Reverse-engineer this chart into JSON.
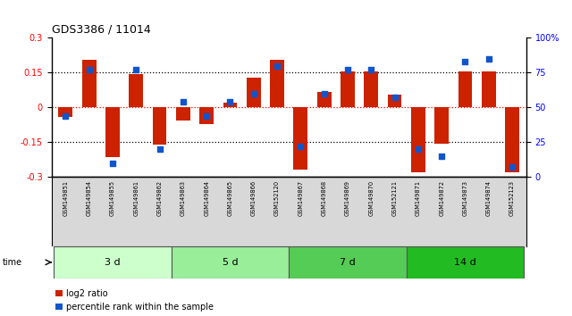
{
  "title": "GDS3386 / 11014",
  "samples": [
    "GSM149851",
    "GSM149854",
    "GSM149855",
    "GSM149861",
    "GSM149862",
    "GSM149863",
    "GSM149864",
    "GSM149865",
    "GSM149866",
    "GSM152120",
    "GSM149867",
    "GSM149868",
    "GSM149869",
    "GSM149870",
    "GSM152121",
    "GSM149871",
    "GSM149872",
    "GSM149873",
    "GSM149874",
    "GSM152123"
  ],
  "log2_ratio": [
    -0.04,
    0.205,
    -0.215,
    0.145,
    -0.16,
    -0.055,
    -0.07,
    0.02,
    0.13,
    0.205,
    -0.27,
    0.065,
    0.155,
    0.155,
    0.055,
    -0.28,
    -0.155,
    0.155,
    0.155,
    -0.28
  ],
  "percentile_rank": [
    44,
    77,
    10,
    77,
    20,
    54,
    44,
    54,
    60,
    80,
    22,
    60,
    77,
    77,
    57,
    20,
    15,
    83,
    85,
    7
  ],
  "groups": [
    {
      "label": "3 d",
      "start": 0,
      "end": 5,
      "color": "#ccffcc"
    },
    {
      "label": "5 d",
      "start": 5,
      "end": 10,
      "color": "#99ee99"
    },
    {
      "label": "7 d",
      "start": 10,
      "end": 15,
      "color": "#55cc55"
    },
    {
      "label": "14 d",
      "start": 15,
      "end": 20,
      "color": "#22bb22"
    }
  ],
  "bar_color": "#cc2200",
  "dot_color": "#1155cc",
  "ylim": [
    -0.3,
    0.3
  ],
  "yticks_left": [
    -0.3,
    -0.15,
    0,
    0.15,
    0.3
  ],
  "ytick_labels_left": [
    "-0.3",
    "-0.15",
    "0",
    "0.15",
    "0.3"
  ],
  "right_yticks": [
    0,
    25,
    50,
    75,
    100
  ],
  "right_ytick_labels": [
    "0",
    "25",
    "50",
    "75",
    "100%"
  ],
  "hlines_black": [
    -0.15,
    0.15
  ],
  "hline_red": 0,
  "background_color": "#ffffff",
  "legend_items": [
    "log2 ratio",
    "percentile rank within the sample"
  ],
  "legend_colors": [
    "#cc2200",
    "#1155cc"
  ]
}
